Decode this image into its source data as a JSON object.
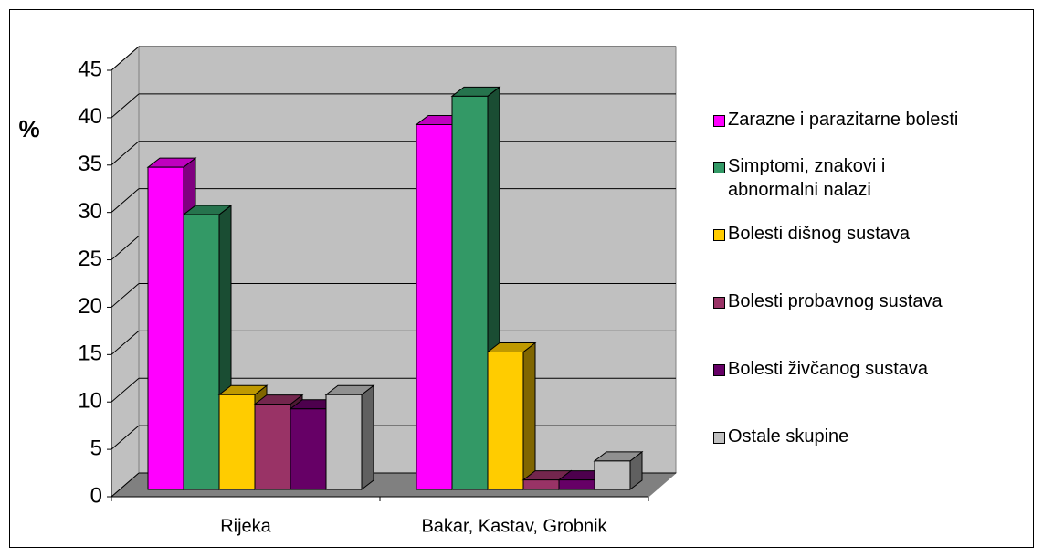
{
  "chart_data": {
    "type": "bar3d",
    "y_label": "%",
    "categories": [
      "Rijeka",
      "Bakar, Kastav, Grobnik"
    ],
    "series": [
      {
        "name": "Zarazne i parazitarne bolesti",
        "color": "#ff00ff",
        "values": [
          34,
          38.5
        ]
      },
      {
        "name": "Simptomi, znakovi i abnormalni nalazi",
        "color": "#339966",
        "values": [
          29,
          41.5
        ]
      },
      {
        "name": "Bolesti dišnog sustava",
        "color": "#ffcc00",
        "values": [
          10,
          14.5
        ]
      },
      {
        "name": "Bolesti probavnog sustava",
        "color": "#993366",
        "values": [
          9,
          1
        ]
      },
      {
        "name": "Bolesti živčanog sustava",
        "color": "#660066",
        "values": [
          8.5,
          1
        ]
      },
      {
        "name": "Ostale skupine",
        "color": "#c0c0c0",
        "values": [
          10,
          3
        ]
      }
    ],
    "ylim": [
      0,
      45
    ],
    "yticks": [
      0,
      5,
      10,
      15,
      20,
      25,
      30,
      35,
      40,
      45
    ],
    "grid": true,
    "legend": "right"
  }
}
